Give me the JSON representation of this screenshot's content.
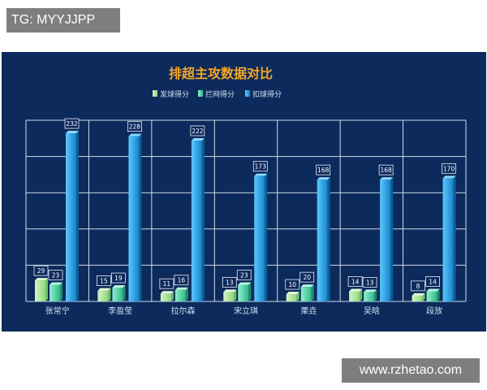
{
  "watermark_top": "TG: MYYJJPP",
  "watermark_bottom": "www.rzhetao.com",
  "colors": {
    "background": "#0d2a5c",
    "title": "#f5a623",
    "series": [
      "#a8e59a",
      "#4fd1a8",
      "#1a9fe0"
    ]
  },
  "chart_data": {
    "type": "bar",
    "title": "排超主攻数据对比",
    "xlabel": "",
    "ylabel": "",
    "categories": [
      "张常宁",
      "李盈莹",
      "拉尔森",
      "宋立琪",
      "栗垚",
      "吴晗",
      "段放"
    ],
    "series": [
      {
        "name": "发球得分",
        "values": [
          29,
          15,
          11,
          13,
          10,
          14,
          8
        ]
      },
      {
        "name": "拦网得分",
        "values": [
          23,
          19,
          16,
          23,
          20,
          13,
          14
        ]
      },
      {
        "name": "扣球得分",
        "values": [
          232,
          228,
          222,
          173,
          168,
          168,
          170
        ]
      }
    ],
    "ylim": [
      0,
      250
    ],
    "grid": true,
    "legend": "top"
  }
}
